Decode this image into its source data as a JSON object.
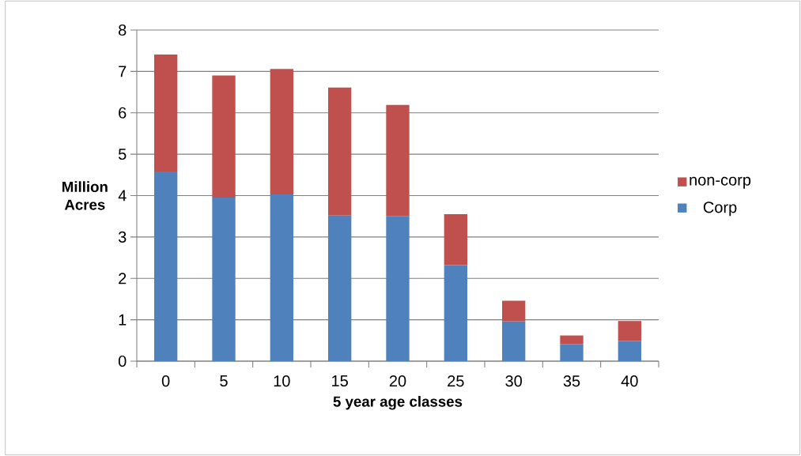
{
  "chart_data": {
    "type": "bar",
    "stacked": true,
    "categories": [
      "0",
      "5",
      "10",
      "15",
      "20",
      "25",
      "30",
      "35",
      "40"
    ],
    "series": [
      {
        "name": "Corp",
        "color": "#4f81bd",
        "values": [
          4.58,
          3.95,
          4.03,
          3.52,
          3.51,
          2.32,
          0.96,
          0.41,
          0.49
        ]
      },
      {
        "name": "non-corp",
        "color": "#c0504d",
        "values": [
          2.83,
          2.95,
          3.03,
          3.09,
          2.68,
          1.23,
          0.5,
          0.21,
          0.48
        ]
      }
    ],
    "xlabel": "5 year age classes",
    "ylabel": "Million Acres",
    "ylim": [
      0,
      8
    ],
    "yticks": [
      0,
      1,
      2,
      3,
      4,
      5,
      6,
      7,
      8
    ],
    "grid": "y",
    "legend": "right"
  }
}
